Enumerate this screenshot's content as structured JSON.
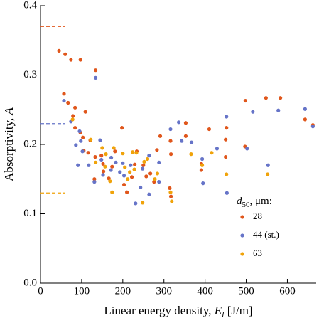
{
  "chart_data": {
    "type": "scatter",
    "x_label": {
      "text": "Linear energy density, ",
      "symbol": "E",
      "subscript": "l",
      "unit": " [J/m]"
    },
    "y_label": {
      "text": "Absorptivity, ",
      "symbol": "A"
    },
    "legend_title": {
      "symbol": "d",
      "subscript": "50",
      "rest": ", μm:"
    },
    "xlim": [
      0,
      670
    ],
    "ylim": [
      0,
      0.4
    ],
    "xticks": [
      0,
      100,
      200,
      300,
      400,
      500,
      600
    ],
    "yticks": [
      {
        "value": 0,
        "label": "0.0"
      },
      0.1,
      0.2,
      0.3,
      0.4
    ],
    "reference_lines": [
      {
        "y": 0.37,
        "x": [
          0,
          60
        ],
        "color": "#e0561b"
      },
      {
        "y": 0.23,
        "x": [
          0,
          60
        ],
        "color": "#6674c8"
      },
      {
        "y": 0.13,
        "x": [
          0,
          60
        ],
        "color": "#f0a30a"
      }
    ],
    "series": [
      {
        "name": "28",
        "color": "#e0561b",
        "x": [
          45,
          60,
          74,
          97,
          134,
          57,
          67,
          84,
          109,
          79,
          84,
          97,
          103,
          121,
          105,
          116,
          133,
          148,
          152,
          153,
          131,
          166,
          174,
          181,
          198,
          203,
          210,
          222,
          229,
          234,
          250,
          257,
          267,
          276,
          283,
          291,
          316,
          317,
          314,
          317,
          353,
          353,
          391,
          391,
          410,
          452,
          450,
          450,
          498,
          497,
          548,
          583,
          643,
          662
        ],
        "values": [
          0.335,
          0.33,
          0.322,
          0.322,
          0.307,
          0.273,
          0.26,
          0.253,
          0.247,
          0.241,
          0.224,
          0.217,
          0.21,
          0.206,
          0.191,
          0.188,
          0.182,
          0.184,
          0.172,
          0.161,
          0.15,
          0.151,
          0.168,
          0.19,
          0.224,
          0.142,
          0.131,
          0.153,
          0.171,
          0.19,
          0.17,
          0.154,
          0.158,
          0.146,
          0.192,
          0.212,
          0.205,
          0.186,
          0.137,
          0.125,
          0.231,
          0.212,
          0.172,
          0.163,
          0.222,
          0.224,
          0.207,
          0.182,
          0.263,
          0.197,
          0.267,
          0.267,
          0.236,
          0.228
        ]
      },
      {
        "name": "44 (st.)",
        "color": "#6674c8",
        "x": [
          57,
          134,
          74,
          95,
          98,
          86,
          102,
          91,
          117,
          131,
          145,
          148,
          152,
          172,
          171,
          183,
          193,
          203,
          200,
          219,
          231,
          243,
          248,
          264,
          264,
          288,
          288,
          316,
          336,
          343,
          367,
          393,
          395,
          429,
          452,
          453,
          516,
          502,
          553,
          578,
          643,
          662
        ],
        "values": [
          0.263,
          0.296,
          0.233,
          0.219,
          0.205,
          0.199,
          0.19,
          0.17,
          0.17,
          0.146,
          0.206,
          0.178,
          0.156,
          0.181,
          0.163,
          0.174,
          0.16,
          0.155,
          0.173,
          0.17,
          0.115,
          0.138,
          0.165,
          0.184,
          0.128,
          0.174,
          0.146,
          0.222,
          0.232,
          0.205,
          0.203,
          0.179,
          0.144,
          0.194,
          0.24,
          0.13,
          0.247,
          0.194,
          0.17,
          0.249,
          0.251,
          0.226
        ]
      },
      {
        "name": "63",
        "color": "#f0a30a",
        "x": [
          78,
          122,
          134,
          150,
          159,
          157,
          169,
          174,
          178,
          200,
          205,
          212,
          217,
          224,
          228,
          233,
          248,
          252,
          260,
          278,
          284,
          316,
          319,
          366,
          393,
          416,
          452,
          552
        ],
        "values": [
          0.236,
          0.207,
          0.174,
          0.195,
          0.186,
          0.168,
          0.147,
          0.131,
          0.195,
          0.187,
          0.167,
          0.15,
          0.16,
          0.189,
          0.164,
          0.188,
          0.116,
          0.175,
          0.179,
          0.15,
          0.158,
          0.131,
          0.118,
          0.186,
          0.17,
          0.188,
          0.157,
          0.157
        ]
      }
    ]
  }
}
